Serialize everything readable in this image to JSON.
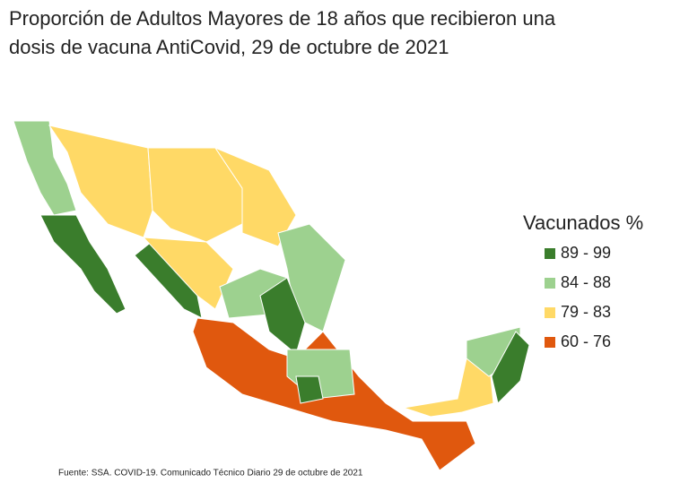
{
  "title": [
    "Proporción de Adultos Mayores de 18 años que recibieron una",
    "dosis de vacuna AntiCovid, 29 de octubre de 2021"
  ],
  "legend": {
    "title": "Vacunados %",
    "items": [
      {
        "label": "89 - 99",
        "color": "#3a7d2c"
      },
      {
        "label": "84 - 88",
        "color": "#9dd18f"
      },
      {
        "label": "79 - 83",
        "color": "#ffd966"
      },
      {
        "label": "60 - 76",
        "color": "#e0580e"
      }
    ]
  },
  "source": "Fuente: SSA. COVID-19. Comunicado Técnico Diario 29 de octubre de 2021"
}
